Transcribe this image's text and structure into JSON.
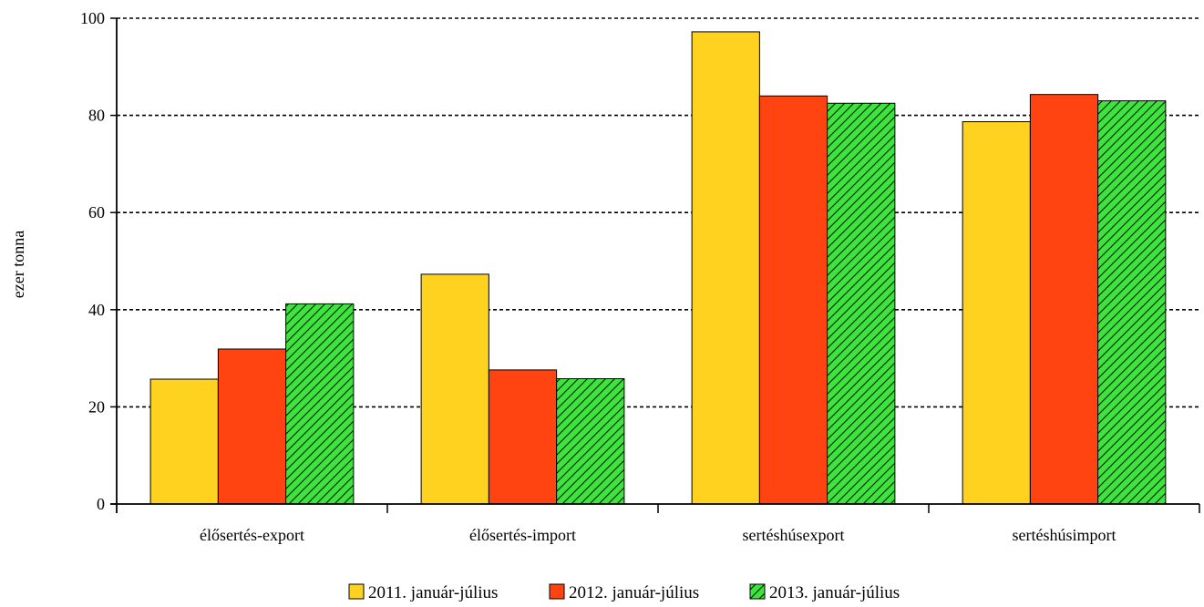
{
  "chart_data": {
    "type": "bar",
    "title": "",
    "xlabel": "",
    "ylabel": "ezer tonna",
    "ylim": [
      0,
      100
    ],
    "yticks": [
      0,
      20,
      40,
      60,
      80,
      100
    ],
    "ytick_labels": [
      "0",
      "20",
      "40",
      "60",
      "80",
      "100"
    ],
    "grid": true,
    "legend_position": "bottom",
    "categories": [
      "élősertés-export",
      "élősertés-import",
      "sertéshúsexport",
      "sertéshúsimport"
    ],
    "series": [
      {
        "name": "2011. január-július",
        "color": "#FFD21F",
        "pattern": "solid",
        "values": [
          25.7,
          47.3,
          97.2,
          78.7
        ]
      },
      {
        "name": "2012. január-július",
        "color": "#FF4412",
        "pattern": "solid",
        "values": [
          31.9,
          27.6,
          84.0,
          84.3
        ]
      },
      {
        "name": "2013. január-július",
        "color": "#3EE33E",
        "pattern": "hatch",
        "values": [
          41.2,
          25.8,
          82.5,
          83.0
        ]
      }
    ]
  }
}
